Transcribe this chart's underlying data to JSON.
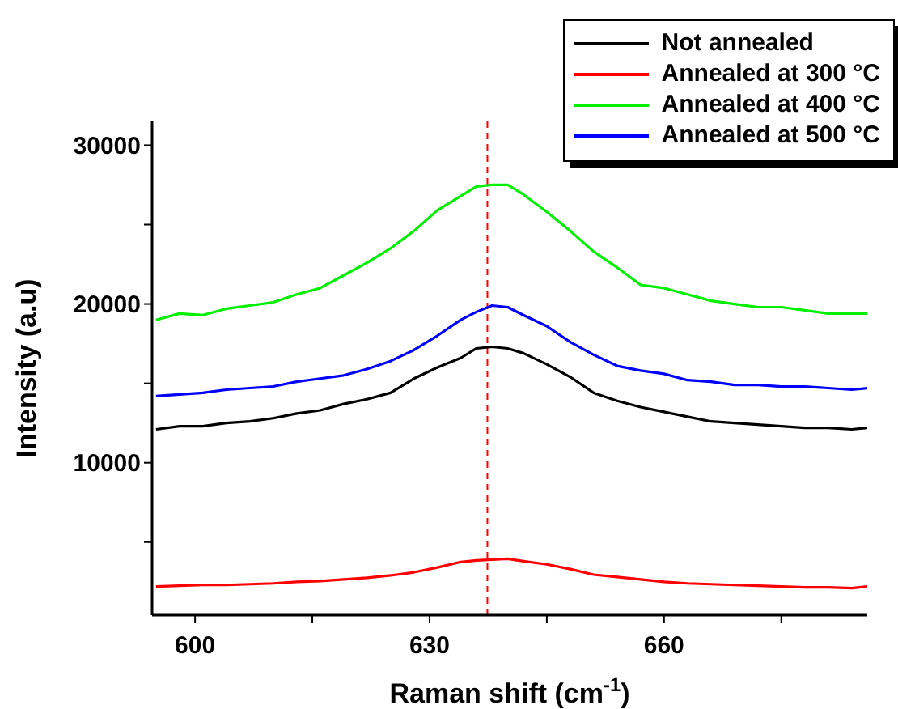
{
  "chart_data": {
    "type": "line",
    "xlabel": "Raman shift (cm$^{-1}$)",
    "ylabel": "Intensity (a.u)",
    "x": [
      595,
      598,
      601,
      604,
      607,
      610,
      613,
      616,
      619,
      622,
      625,
      628,
      631,
      634,
      636,
      638,
      640,
      642,
      645,
      648,
      651,
      654,
      657,
      660,
      663,
      666,
      669,
      672,
      675,
      678,
      681,
      684,
      686
    ],
    "series": [
      {
        "name": "Not annealed",
        "color": "#000000",
        "values": [
          12100,
          12300,
          12300,
          12500,
          12600,
          12800,
          13100,
          13300,
          13700,
          14000,
          14400,
          15300,
          16000,
          16600,
          17200,
          17300,
          17200,
          16900,
          16200,
          15400,
          14400,
          13900,
          13500,
          13200,
          12900,
          12600,
          12500,
          12400,
          12300,
          12200,
          12200,
          12100,
          12200
        ]
      },
      {
        "name": "Annealed at 300 °C",
        "color": "#ff0000",
        "values": [
          2200,
          2250,
          2300,
          2300,
          2350,
          2400,
          2500,
          2550,
          2650,
          2750,
          2900,
          3100,
          3400,
          3750,
          3850,
          3900,
          3950,
          3800,
          3600,
          3300,
          2950,
          2800,
          2650,
          2500,
          2400,
          2350,
          2300,
          2250,
          2200,
          2150,
          2150,
          2100,
          2200
        ]
      },
      {
        "name": "Annealed at 400 °C",
        "color": "#00ee00",
        "values": [
          19000,
          19400,
          19300,
          19700,
          19900,
          20100,
          20600,
          21000,
          21800,
          22600,
          23500,
          24600,
          25900,
          26800,
          27400,
          27500,
          27500,
          26900,
          25800,
          24600,
          23300,
          22300,
          21200,
          21000,
          20600,
          20200,
          20000,
          19800,
          19800,
          19600,
          19400,
          19400,
          19400
        ]
      },
      {
        "name": "Annealed at 500 °C",
        "color": "#0000ff",
        "values": [
          14200,
          14300,
          14400,
          14600,
          14700,
          14800,
          15100,
          15300,
          15500,
          15900,
          16400,
          17100,
          18000,
          19000,
          19500,
          19900,
          19800,
          19300,
          18600,
          17600,
          16800,
          16100,
          15800,
          15600,
          15200,
          15100,
          14900,
          14900,
          14800,
          14800,
          14700,
          14600,
          14700
        ]
      }
    ],
    "xlim": [
      594.5,
      686
    ],
    "xticks": [
      600,
      {
        "value": 615,
        "label": null
      },
      630,
      {
        "value": 645,
        "label": null
      },
      660,
      {
        "value": 675,
        "label": null
      }
    ],
    "ylim": [
      400,
      31500
    ],
    "yticks": [
      {
        "value": 5000,
        "label": null
      },
      10000,
      {
        "value": 15000,
        "label": null
      },
      20000,
      {
        "value": 25000,
        "label": null
      },
      30000
    ],
    "ref_lines": [
      {
        "axis": "x",
        "value": 637.4,
        "color": "#ff0000",
        "line_style": "dashed"
      }
    ],
    "legend": "top right"
  }
}
